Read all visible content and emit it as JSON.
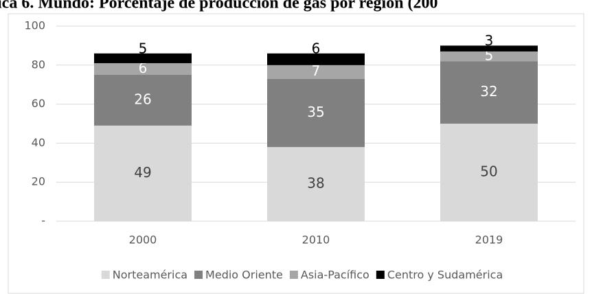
{
  "chart_data": {
    "type": "stacked_bar",
    "title": "ica 6. Mundo: Porcentaje de producción de gas por región (200",
    "categories": [
      "2000",
      "2010",
      "2019"
    ],
    "series": [
      {
        "name": "Norteamérica",
        "color": "#d9d9d9",
        "values": [
          49,
          38,
          50
        ]
      },
      {
        "name": "Medio Oriente",
        "color": "#808080",
        "values": [
          26,
          35,
          32
        ]
      },
      {
        "name": "Asia-Pacífico",
        "color": "#a6a6a6",
        "values": [
          6,
          7,
          5
        ]
      },
      {
        "name": "Centro y Sudamérica",
        "color": "#000000",
        "values": [
          5,
          6,
          3
        ]
      }
    ],
    "ylim": [
      0,
      100
    ],
    "yticks": [
      {
        "value": 0,
        "label": "-"
      },
      20,
      40,
      60,
      80,
      100
    ],
    "grid": true,
    "legend": "bottom"
  }
}
